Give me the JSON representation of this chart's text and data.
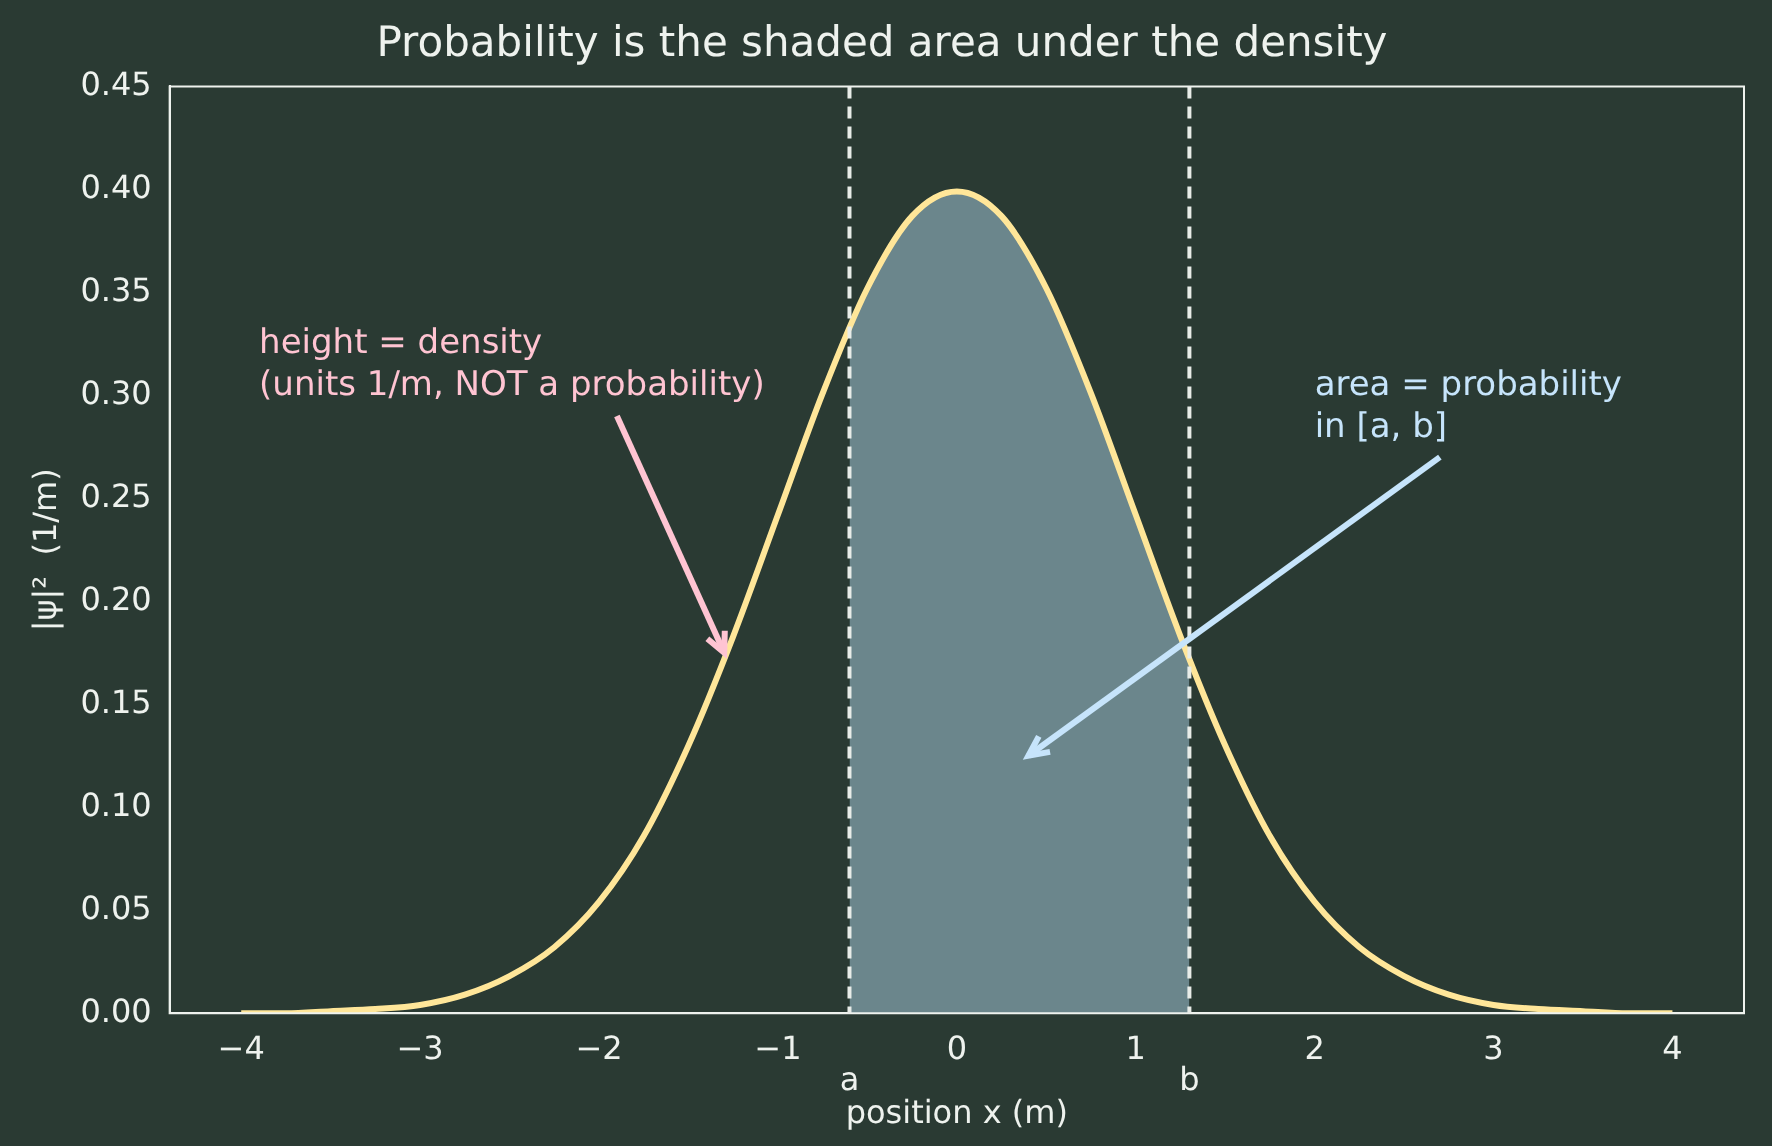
{
  "chart_data": {
    "type": "line",
    "title": "Probability is the shaded area under the density",
    "xlabel": "position x (m)",
    "ylabel": "|ψ|²  (1/m)",
    "x": [
      -4,
      -3.75,
      -3.5,
      -3.25,
      -3,
      -2.75,
      -2.5,
      -2.25,
      -2,
      -1.75,
      -1.5,
      -1.25,
      -1,
      -0.75,
      -0.5,
      -0.25,
      0,
      0.25,
      0.5,
      0.75,
      1,
      1.25,
      1.5,
      1.75,
      2,
      2.25,
      2.5,
      2.75,
      3,
      3.25,
      3.5,
      3.75,
      4
    ],
    "series": [
      {
        "type": "area",
        "color": "#6b868c",
        "x": [
          -0.6,
          -0.5,
          -0.25,
          0,
          0.25,
          0.5,
          0.75,
          1,
          1.25,
          1.3
        ],
        "values": [
          0.333,
          0.352,
          0.387,
          0.399,
          0.387,
          0.352,
          0.301,
          0.242,
          0.183,
          0.171
        ]
      },
      {
        "color": "#ffe699",
        "values": [
          0.0,
          0.0,
          0.001,
          0.002,
          0.004,
          0.009,
          0.018,
          0.032,
          0.054,
          0.086,
          0.13,
          0.183,
          0.242,
          0.301,
          0.352,
          0.387,
          0.399,
          0.387,
          0.352,
          0.301,
          0.242,
          0.183,
          0.13,
          0.086,
          0.054,
          0.032,
          0.018,
          0.009,
          0.004,
          0.002,
          0.001,
          0.0,
          0.0
        ]
      }
    ],
    "xlim": [
      -4.4,
      4.4
    ],
    "ylim": [
      0,
      0.45
    ],
    "xticks": [
      {
        "value": -4,
        "label": "−4"
      },
      {
        "value": -3,
        "label": "−3"
      },
      {
        "value": -2,
        "label": "−2"
      },
      {
        "value": -1,
        "label": "−1"
      },
      0,
      1,
      2,
      3,
      4
    ],
    "yticks": [
      {
        "value": 0,
        "label": "0.00"
      },
      {
        "value": 0.05,
        "label": "0.05"
      },
      {
        "value": 0.1,
        "label": "0.10"
      },
      {
        "value": 0.15,
        "label": "0.15"
      },
      {
        "value": 0.2,
        "label": "0.20"
      },
      {
        "value": 0.25,
        "label": "0.25"
      },
      {
        "value": 0.3,
        "label": "0.30"
      },
      {
        "value": 0.35,
        "label": "0.35"
      },
      {
        "value": 0.4,
        "label": "0.40"
      },
      {
        "value": 0.45,
        "label": "0.45"
      }
    ],
    "ref_lines": [
      {
        "axis": "x",
        "value": -0.6,
        "label": "a",
        "color": "#e8ece8",
        "line_style": "dashed"
      },
      {
        "axis": "x",
        "value": 1.3,
        "label": "b",
        "color": "#e8ece8",
        "line_style": "dashed"
      }
    ],
    "annotations": [
      {
        "text": "height = density\n(units 1/m, NOT a probability)",
        "x": -1.3,
        "y": 0.175
      },
      "area = probability\nin [a, b]"
    ],
    "marker": "none",
    "line_style": "solid",
    "grid": false
  }
}
